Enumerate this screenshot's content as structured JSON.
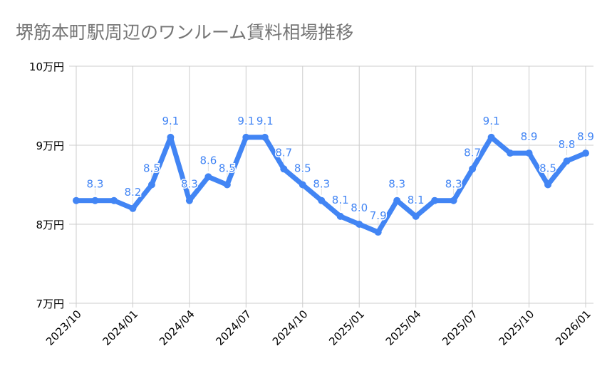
{
  "chart_data": {
    "type": "line",
    "title": "堺筋本町駅周辺のワンルーム賃料相場推移",
    "xlabel": "",
    "ylabel": "",
    "y_unit": "万円",
    "ylim": [
      7,
      10
    ],
    "yticks": [
      "7万円",
      "8万円",
      "9万円",
      "10万円"
    ],
    "ytick_values": [
      7,
      8,
      9,
      10
    ],
    "grid": true,
    "legend": null,
    "x_tick_labels": [
      "2023/10",
      "2024/01",
      "2024/04",
      "2024/07",
      "2024/10",
      "2025/01",
      "2025/04",
      "2025/07",
      "2025/10",
      "2026/01"
    ],
    "x": [
      "2023/10",
      "2023/11",
      "2023/12",
      "2024/01",
      "2024/02",
      "2024/03",
      "2024/04",
      "2024/05",
      "2024/06",
      "2024/07",
      "2024/08",
      "2024/09",
      "2024/10",
      "2024/11",
      "2024/12",
      "2025/01",
      "2025/02",
      "2025/03",
      "2025/04",
      "2025/05",
      "2025/06",
      "2025/07",
      "2025/08",
      "2025/09",
      "2025/10",
      "2025/11",
      "2025/12",
      "2026/01"
    ],
    "series": [
      {
        "name": "ワンルーム賃料相場",
        "color": "#4285f4",
        "values": [
          8.3,
          8.3,
          8.3,
          8.2,
          8.5,
          9.1,
          8.3,
          8.6,
          8.5,
          9.1,
          9.1,
          8.7,
          8.5,
          8.3,
          8.1,
          8.0,
          7.9,
          8.3,
          8.1,
          8.3,
          8.3,
          8.7,
          9.1,
          8.9,
          8.9,
          8.5,
          8.8,
          8.9
        ],
        "labels": [
          "",
          "8.3",
          "",
          "8.2",
          "8.5",
          "9.1",
          "8.3",
          "8.6",
          "8.5",
          "9.1",
          "9.1",
          "8.7",
          "8.5",
          "8.3",
          "8.1",
          "8.0",
          "7.9",
          "8.3",
          "8.1",
          "",
          "8.3",
          "8.7",
          "9.1",
          "",
          "8.9",
          "8.5",
          "8.8",
          "8.9"
        ]
      }
    ]
  },
  "colors": {
    "line": "#4285f4",
    "grid": "#cccccc",
    "title": "#757575"
  }
}
